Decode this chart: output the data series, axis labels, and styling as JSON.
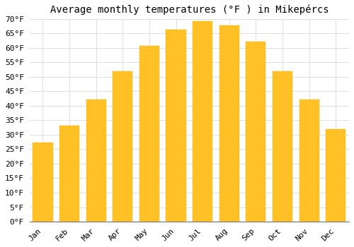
{
  "title": "Average monthly temperatures (°F ) in Mikepércs",
  "months": [
    "Jan",
    "Feb",
    "Mar",
    "Apr",
    "May",
    "Jun",
    "Jul",
    "Aug",
    "Sep",
    "Oct",
    "Nov",
    "Dec"
  ],
  "values": [
    27.3,
    33.1,
    42.1,
    52.0,
    60.8,
    66.2,
    69.3,
    67.8,
    62.2,
    51.8,
    42.1,
    32.0
  ],
  "bar_color_top": "#FFC125",
  "bar_color_bottom": "#FFA500",
  "background_color": "#FFFFFF",
  "grid_color": "#DDDDDD",
  "ylim": [
    0,
    70
  ],
  "ytick_values": [
    0,
    5,
    10,
    15,
    20,
    25,
    30,
    35,
    40,
    45,
    50,
    55,
    60,
    65,
    70
  ],
  "title_fontsize": 10,
  "tick_fontsize": 8,
  "font_family": "monospace"
}
